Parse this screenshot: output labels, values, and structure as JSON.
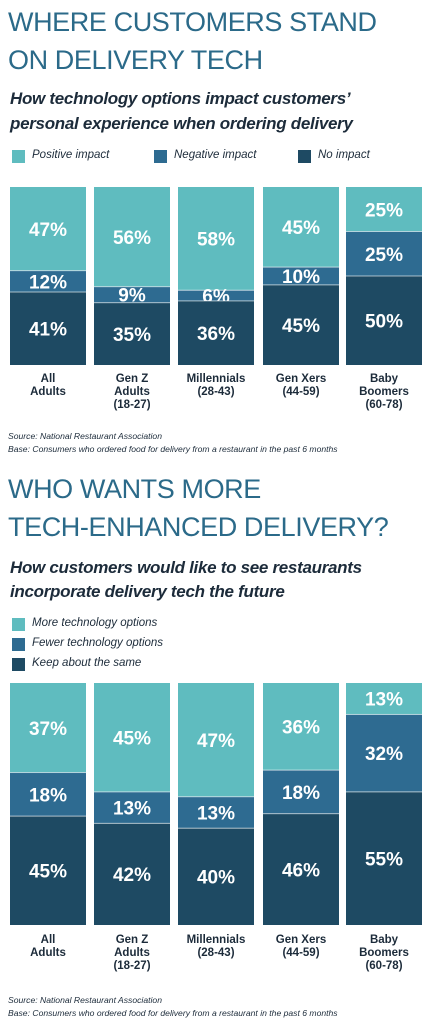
{
  "colors": {
    "positive": "#5fbcbf",
    "negative": "#2e6b91",
    "none": "#1e4a63",
    "title": "#2b6a89",
    "text": "#1c2b3a"
  },
  "chart_data": [
    {
      "type": "bar",
      "stacked": true,
      "title": "WHERE CUSTOMERS STAND ON DELIVERY TECH",
      "subtitle": "How technology options impact customers’ personal experience when ordering delivery",
      "categories": [
        "All Adults",
        "Gen Z Adults (18-27)",
        "Millennials (28-43)",
        "Gen Xers (44-59)",
        "Baby Boomers (60-78)"
      ],
      "series": [
        {
          "name": "Positive impact",
          "color": "#5fbcbf",
          "values": [
            47,
            56,
            58,
            45,
            25
          ]
        },
        {
          "name": "Negative impact",
          "color": "#2e6b91",
          "values": [
            12,
            9,
            6,
            10,
            25
          ]
        },
        {
          "name": "No impact",
          "color": "#1e4a63",
          "values": [
            41,
            35,
            36,
            45,
            50
          ]
        }
      ],
      "value_suffix": "%",
      "ylim": [
        0,
        100
      ],
      "legend_position": "top",
      "source": "Source: National Restaurant Association",
      "base": "Base: Consumers who ordered food for delivery from a restaurant in the past 6 months"
    },
    {
      "type": "bar",
      "stacked": true,
      "title": "WHO WANTS MORE TECH-ENHANCED DELIVERY?",
      "subtitle": "How customers would like to see restaurants incorporate delivery tech the future",
      "categories": [
        "All Adults",
        "Gen Z Adults (18-27)",
        "Millennials (28-43)",
        "Gen Xers (44-59)",
        "Baby Boomers (60-78)"
      ],
      "series": [
        {
          "name": "More technology options",
          "color": "#5fbcbf",
          "values": [
            37,
            45,
            47,
            36,
            13
          ]
        },
        {
          "name": "Fewer technology options",
          "color": "#2e6b91",
          "values": [
            18,
            13,
            13,
            18,
            32
          ]
        },
        {
          "name": "Keep about the same",
          "color": "#1e4a63",
          "values": [
            45,
            42,
            40,
            46,
            55
          ]
        }
      ],
      "value_suffix": "%",
      "ylim": [
        0,
        100
      ],
      "legend_position": "top",
      "source": "Source: National Restaurant Association",
      "base": "Base: Consumers who ordered food for delivery from a restaurant in the past 6 months"
    }
  ],
  "labels": {
    "c1_title_l1": "WHERE CUSTOMERS STAND",
    "c1_title_l2": "ON DELIVERY TECH",
    "c1_sub_l1": "How technology options impact customers’",
    "c1_sub_l2": "personal experience when ordering delivery",
    "c2_title_l1": "WHO WANTS MORE",
    "c2_title_l2": "TECH-ENHANCED DELIVERY?",
    "c2_sub_l1": "How customers would like to see restaurants",
    "c2_sub_l2": "incorporate delivery tech the future",
    "cat_lines": [
      [
        "All",
        "Adults"
      ],
      [
        "Gen Z",
        "Adults",
        "(18-27)"
      ],
      [
        "Millennials",
        "(28-43)"
      ],
      [
        "Gen Xers",
        "(44-59)"
      ],
      [
        "Baby",
        "Boomers",
        "(60-78)"
      ]
    ]
  }
}
